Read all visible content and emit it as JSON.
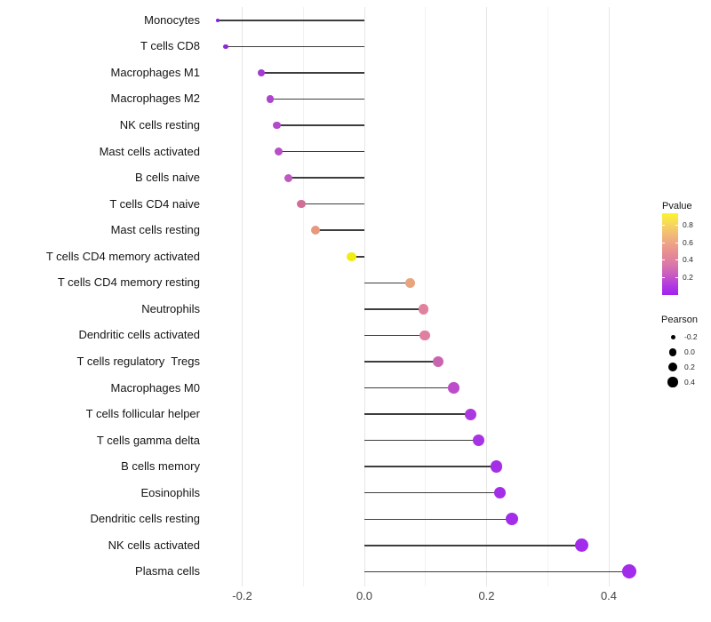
{
  "chart_data": {
    "type": "lollipop",
    "orientation": "horizontal",
    "title": "",
    "xlabel": "",
    "ylabel": "",
    "grid": "major and minor vertical gridlines, light gray on white",
    "baseline": 0,
    "xlim": [
      -0.274,
      0.468
    ],
    "x_ticks": [
      {
        "value": -0.2,
        "label": "-0.2"
      },
      {
        "value": 0.0,
        "label": "0.0"
      },
      {
        "value": 0.2,
        "label": "0.2"
      },
      {
        "value": 0.4,
        "label": "0.4"
      }
    ],
    "x_minor_ticks": [
      -0.1,
      0.1,
      0.3
    ],
    "series_name": "Pearson",
    "points": [
      {
        "label": "Monocytes",
        "pearson": -0.24,
        "color": "#8323D8",
        "size": 4.5
      },
      {
        "label": "T cells CD8",
        "pearson": -0.227,
        "color": "#8C2BD5",
        "size": 5.5
      },
      {
        "label": "Macrophages M1",
        "pearson": -0.169,
        "color": "#A43CD4",
        "size": 8
      },
      {
        "label": "Macrophages M2",
        "pearson": -0.154,
        "color": "#AD46CE",
        "size": 8.5
      },
      {
        "label": "NK cells resting",
        "pearson": -0.143,
        "color": "#B14BCB",
        "size": 8.5
      },
      {
        "label": "Mast cells activated",
        "pearson": -0.141,
        "color": "#B550C6",
        "size": 9
      },
      {
        "label": "B cells naive",
        "pearson": -0.124,
        "color": "#BE59BF",
        "size": 9
      },
      {
        "label": "T cells CD4 naive",
        "pearson": -0.103,
        "color": "#D06E97",
        "size": 9.5
      },
      {
        "label": "Mast cells resting",
        "pearson": -0.08,
        "color": "#E5997F",
        "size": 10
      },
      {
        "label": "T cells CD4 memory activated",
        "pearson": -0.021,
        "color": "#F2EC15",
        "size": 10.5
      },
      {
        "label": "T cells CD4 memory resting",
        "pearson": 0.075,
        "color": "#E9A47E",
        "size": 11
      },
      {
        "label": "Neutrophils",
        "pearson": 0.097,
        "color": "#E0829D",
        "size": 11.5
      },
      {
        "label": "Dendritic cells activated",
        "pearson": 0.099,
        "color": "#E07F9E",
        "size": 11.5
      },
      {
        "label": "T cells regulatory  Tregs",
        "pearson": 0.12,
        "color": "#C964B0",
        "size": 12
      },
      {
        "label": "Macrophages M0",
        "pearson": 0.146,
        "color": "#BC4CCA",
        "size": 12.5
      },
      {
        "label": "T cells follicular helper",
        "pearson": 0.174,
        "color": "#AB38E0",
        "size": 13
      },
      {
        "label": "T cells gamma delta",
        "pearson": 0.187,
        "color": "#A833E4",
        "size": 13
      },
      {
        "label": "B cells memory",
        "pearson": 0.216,
        "color": "#A52FE7",
        "size": 13.5
      },
      {
        "label": "Eosinophils",
        "pearson": 0.222,
        "color": "#A42EE8",
        "size": 13.5
      },
      {
        "label": "Dendritic cells resting",
        "pearson": 0.241,
        "color": "#A32DE9",
        "size": 14
      },
      {
        "label": "NK cells activated",
        "pearson": 0.356,
        "color": "#A32BEB",
        "size": 15
      },
      {
        "label": "Plasma cells",
        "pearson": 0.434,
        "color": "#A32CEA",
        "size": 16
      }
    ],
    "legends": {
      "pvalue": {
        "title": "Pvalue",
        "tick_labels": [
          "0.8",
          "0.6",
          "0.4",
          "0.2"
        ],
        "gradient_top_to_bottom": [
          "#FCF528",
          "#F6D85C",
          "#F2BD74",
          "#EEA287",
          "#E68B94",
          "#DB78A9",
          "#C95BC1",
          "#B23CE0",
          "#A220F1"
        ]
      },
      "pearson": {
        "title": "Pearson",
        "entries": [
          {
            "label": "-0.2",
            "size": 5
          },
          {
            "label": "0.0",
            "size": 8.5
          },
          {
            "label": "0.2",
            "size": 10
          },
          {
            "label": "0.4",
            "size": 11.5
          }
        ],
        "dot_color": "#000000"
      }
    },
    "colors_misc": {
      "stem": "#3d3d3d",
      "grid_major": "#e5e5e5",
      "grid_minor": "#f2f2f2",
      "background": "#ffffff"
    }
  }
}
